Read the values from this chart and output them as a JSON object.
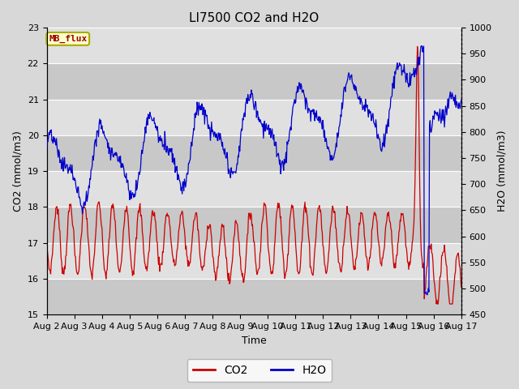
{
  "title": "LI7500 CO2 and H2O",
  "xlabel": "Time",
  "ylabel_left": "CO2 (mmol/m3)",
  "ylabel_right": "H2O (mmol/m3)",
  "ylim_left": [
    15.0,
    23.0
  ],
  "ylim_right": [
    450,
    1000
  ],
  "yticks_left": [
    15.0,
    16.0,
    17.0,
    18.0,
    19.0,
    20.0,
    21.0,
    22.0,
    23.0
  ],
  "yticks_right": [
    450,
    500,
    550,
    600,
    650,
    700,
    750,
    800,
    850,
    900,
    950,
    1000
  ],
  "xtick_labels": [
    "Aug 2",
    "Aug 3",
    "Aug 4",
    "Aug 5",
    "Aug 6",
    "Aug 7",
    "Aug 8",
    "Aug 9",
    "Aug 10",
    "Aug 11",
    "Aug 12",
    "Aug 13",
    "Aug 14",
    "Aug 15",
    "Aug 16",
    "Aug 17"
  ],
  "fig_bg_color": "#d8d8d8",
  "axes_bg_color": "#d8d8d8",
  "band_dark_color": "#c8c8c8",
  "band_light_color": "#e0e0e0",
  "co2_color": "#cc0000",
  "h2o_color": "#0000cc",
  "legend_label_co2": "CO2",
  "legend_label_h2o": "H2O",
  "annotation_text": "MB_flux",
  "annotation_bg": "#ffffcc",
  "annotation_edge": "#aaaa00",
  "title_fontsize": 11,
  "axis_label_fontsize": 9,
  "tick_fontsize": 8,
  "legend_fontsize": 10,
  "n_days": 15,
  "n_per_day": 48
}
